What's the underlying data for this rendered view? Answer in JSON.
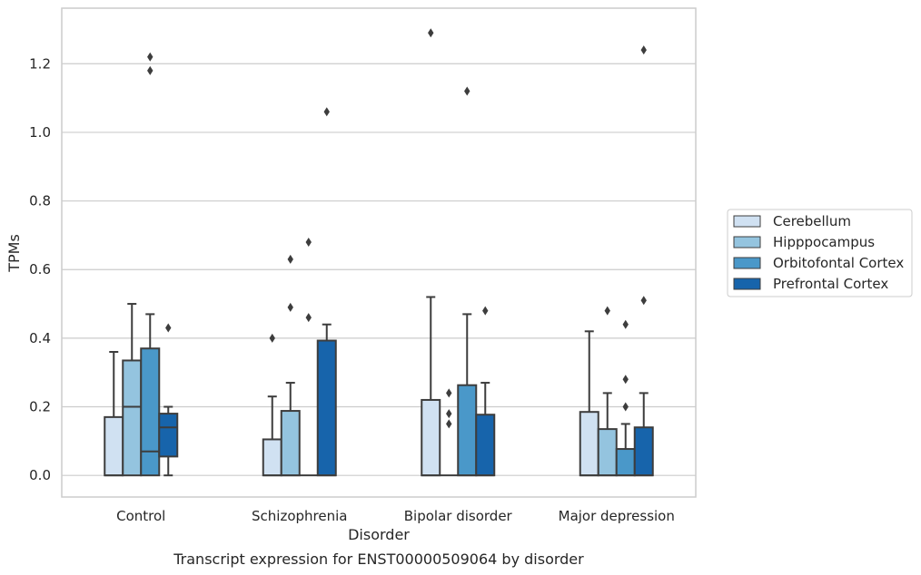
{
  "chart_data": {
    "type": "box",
    "title": "",
    "caption": "Transcript expression for ENST00000509064 by disorder",
    "xlabel": "Disorder",
    "ylabel": "TPMs",
    "ylim": [
      -0.063,
      1.362
    ],
    "yticks": [
      0.0,
      0.2,
      0.4,
      0.6,
      0.8,
      1.0,
      1.2
    ],
    "grid": true,
    "legend_position": "right",
    "categories": [
      "Control",
      "Schizophrenia",
      "Bipolar disorder",
      "Major depression"
    ],
    "series": [
      {
        "name": "Cerebellum",
        "color": "#d0e1f2",
        "boxes": [
          {
            "whisker_low": 0.0,
            "q1": 0.0,
            "median": 0.0,
            "q3": 0.17,
            "whisker_high": 0.36,
            "outliers": []
          },
          {
            "whisker_low": 0.0,
            "q1": 0.0,
            "median": 0.0,
            "q3": 0.105,
            "whisker_high": 0.23,
            "outliers": [
              0.4
            ]
          },
          {
            "whisker_low": 0.0,
            "q1": 0.0,
            "median": 0.0,
            "q3": 0.22,
            "whisker_high": 0.52,
            "outliers": [
              1.29
            ]
          },
          {
            "whisker_low": 0.0,
            "q1": 0.0,
            "median": 0.0,
            "q3": 0.185,
            "whisker_high": 0.42,
            "outliers": []
          }
        ]
      },
      {
        "name": "Hipppocampus",
        "color": "#94c4df",
        "boxes": [
          {
            "whisker_low": 0.0,
            "q1": 0.0,
            "median": 0.2,
            "q3": 0.335,
            "whisker_high": 0.5,
            "outliers": []
          },
          {
            "whisker_low": 0.0,
            "q1": 0.0,
            "median": 0.0,
            "q3": 0.188,
            "whisker_high": 0.27,
            "outliers": [
              0.49,
              0.63
            ]
          },
          {
            "whisker_low": 0.0,
            "q1": 0.0,
            "median": 0.0,
            "q3": 0.0,
            "whisker_high": 0.0,
            "outliers": [
              0.15,
              0.18,
              0.24
            ]
          },
          {
            "whisker_low": 0.0,
            "q1": 0.0,
            "median": 0.0,
            "q3": 0.135,
            "whisker_high": 0.24,
            "outliers": [
              0.48
            ]
          }
        ]
      },
      {
        "name": "Orbitofontal Cortex",
        "color": "#4a98c9",
        "boxes": [
          {
            "whisker_low": 0.0,
            "q1": 0.0,
            "median": 0.07,
            "q3": 0.37,
            "whisker_high": 0.47,
            "outliers": [
              1.18,
              1.22
            ]
          },
          {
            "whisker_low": 0.0,
            "q1": 0.0,
            "median": 0.0,
            "q3": 0.0,
            "whisker_high": 0.0,
            "outliers": [
              0.46,
              0.68
            ]
          },
          {
            "whisker_low": 0.0,
            "q1": 0.0,
            "median": 0.0,
            "q3": 0.263,
            "whisker_high": 0.47,
            "outliers": [
              1.12
            ]
          },
          {
            "whisker_low": 0.0,
            "q1": 0.0,
            "median": 0.0,
            "q3": 0.077,
            "whisker_high": 0.15,
            "outliers": [
              0.2,
              0.28,
              0.44
            ]
          }
        ]
      },
      {
        "name": "Prefrontal Cortex",
        "color": "#1764ab",
        "boxes": [
          {
            "whisker_low": 0.0,
            "q1": 0.055,
            "median": 0.14,
            "q3": 0.18,
            "whisker_high": 0.2,
            "outliers": [
              0.43
            ]
          },
          {
            "whisker_low": 0.0,
            "q1": 0.0,
            "median": 0.0,
            "q3": 0.393,
            "whisker_high": 0.44,
            "outliers": [
              1.06
            ]
          },
          {
            "whisker_low": 0.0,
            "q1": 0.0,
            "median": 0.0,
            "q3": 0.177,
            "whisker_high": 0.27,
            "outliers": [
              0.48
            ]
          },
          {
            "whisker_low": 0.0,
            "q1": 0.0,
            "median": 0.0,
            "q3": 0.14,
            "whisker_high": 0.24,
            "outliers": [
              0.51,
              1.24
            ]
          }
        ]
      }
    ]
  }
}
